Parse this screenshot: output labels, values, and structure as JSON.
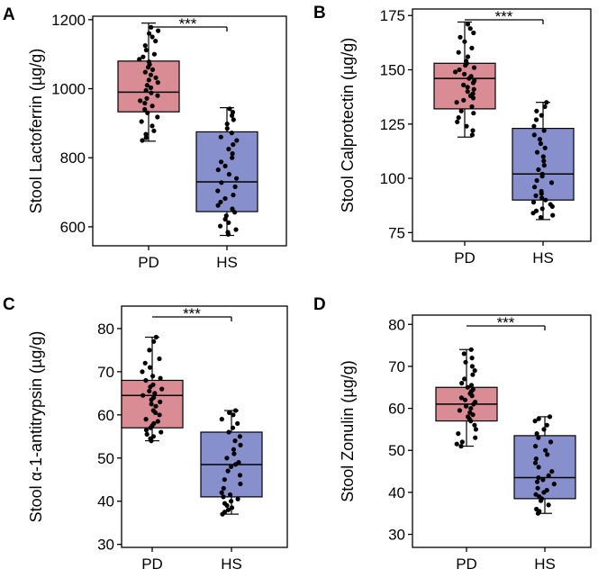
{
  "colors": {
    "pd_fill": "#d98c94",
    "hs_fill": "#8790cc",
    "frame": "#000000",
    "point": "#000000"
  },
  "chart_data": [
    {
      "panel": "A",
      "type": "box",
      "ylabel": "Stool Lactoferrin (µg/g)",
      "categories": [
        "PD",
        "HS"
      ],
      "ylim": [
        545,
        1210
      ],
      "yticks": [
        600,
        800,
        1000,
        1200
      ],
      "significance": "***",
      "boxes": [
        {
          "name": "PD",
          "min": 848,
          "q1": 933,
          "median": 990,
          "q3": 1080,
          "max": 1190
        },
        {
          "name": "HS",
          "min": 575,
          "q1": 644,
          "median": 730,
          "q3": 875,
          "max": 945
        }
      ],
      "points": [
        [
          1178,
          1168,
          1160,
          1150,
          1138,
          1125,
          1112,
          1100,
          1092,
          1085,
          1078,
          1070,
          1062,
          1055,
          1048,
          1040,
          1032,
          1025,
          1018,
          1010,
          1003,
          995,
          988,
          980,
          972,
          965,
          958,
          950,
          940,
          930,
          918,
          905,
          892,
          878,
          868,
          858,
          850
        ],
        [
          942,
          932,
          922,
          910,
          898,
          885,
          872,
          860,
          850,
          838,
          825,
          812,
          800,
          788,
          776,
          765,
          752,
          740,
          728,
          716,
          704,
          692,
          682,
          672,
          662,
          652,
          642,
          632,
          622,
          612,
          602,
          592,
          584,
          578
        ]
      ]
    },
    {
      "panel": "B",
      "type": "box",
      "ylabel": "Stool Calprotectin (µg/g)",
      "categories": [
        "PD",
        "HS"
      ],
      "ylim": [
        71,
        178
      ],
      "yticks": [
        75,
        100,
        125,
        150,
        175
      ],
      "significance": "***",
      "boxes": [
        {
          "name": "PD",
          "min": 119,
          "q1": 132,
          "median": 146,
          "q3": 153,
          "max": 172
        },
        {
          "name": "HS",
          "min": 81,
          "q1": 90,
          "median": 102,
          "q3": 123,
          "max": 135
        }
      ],
      "points": [
        [
          171,
          169,
          167,
          165,
          163,
          160,
          158,
          156,
          154,
          153,
          152,
          151,
          150,
          149,
          148,
          147,
          146,
          145,
          144,
          143,
          142,
          141,
          140,
          139,
          138,
          137,
          136,
          135,
          133,
          131,
          130,
          128,
          126,
          124,
          122,
          120
        ],
        [
          135,
          133,
          131,
          129,
          127,
          124,
          122,
          120,
          118,
          116,
          114,
          112,
          110,
          108,
          106,
          104,
          102,
          101,
          99,
          98,
          96,
          94,
          93,
          92,
          91,
          90,
          89,
          88,
          87,
          86,
          85,
          84,
          83,
          82
        ]
      ]
    },
    {
      "panel": "C",
      "type": "box",
      "ylabel": "Stool α-1-antitrypsin (µg/g)",
      "categories": [
        "PD",
        "HS"
      ],
      "ylim": [
        29.3,
        85.2
      ],
      "yticks": [
        30,
        40,
        50,
        60,
        70,
        80
      ],
      "significance": "***",
      "boxes": [
        {
          "name": "PD",
          "min": 54,
          "q1": 57,
          "median": 64.5,
          "q3": 68,
          "max": 78
        },
        {
          "name": "HS",
          "min": 37,
          "q1": 41,
          "median": 48.5,
          "q3": 56,
          "max": 61
        }
      ],
      "points": [
        [
          78,
          77,
          75,
          73,
          72,
          71,
          70,
          69,
          68.5,
          68,
          67,
          66.5,
          66,
          65.5,
          65,
          64.5,
          64,
          63.5,
          63,
          62.5,
          62,
          61,
          60.5,
          60,
          59,
          58.5,
          58,
          57.5,
          57,
          56.5,
          56,
          55.5,
          55,
          54.5,
          54
        ],
        [
          61,
          60.5,
          60,
          59,
          58,
          57,
          56,
          55,
          54,
          53,
          52,
          51,
          50,
          49,
          48.5,
          48,
          47,
          46,
          45,
          44,
          43,
          42,
          41.5,
          41,
          40.5,
          40,
          39.5,
          39,
          38.5,
          38,
          37.5,
          37
        ]
      ]
    },
    {
      "panel": "D",
      "type": "box",
      "ylabel": "Stool Zonulin (µg/g)",
      "categories": [
        "PD",
        "HS"
      ],
      "ylim": [
        26.9,
        82.2
      ],
      "yticks": [
        30,
        40,
        50,
        60,
        70,
        80
      ],
      "significance": "***",
      "boxes": [
        {
          "name": "PD",
          "min": 51,
          "q1": 57,
          "median": 61,
          "q3": 65,
          "max": 74
        },
        {
          "name": "HS",
          "min": 35,
          "q1": 38.5,
          "median": 43.5,
          "q3": 53.5,
          "max": 58
        }
      ],
      "points": [
        [
          74,
          73,
          72,
          71,
          70,
          69,
          68,
          67,
          66,
          65.5,
          65,
          64.5,
          64,
          63.5,
          63,
          62.5,
          62,
          61.5,
          61,
          60.5,
          60,
          59.5,
          59,
          58.5,
          58,
          57.5,
          57,
          56,
          55,
          54,
          53,
          52,
          51.5,
          51
        ],
        [
          58,
          57.5,
          57,
          56,
          55,
          54,
          53,
          52,
          51,
          50,
          49,
          48,
          47,
          46,
          45,
          44,
          43.5,
          43,
          42.5,
          42,
          41,
          40.5,
          40,
          39.5,
          39,
          38.5,
          38,
          37,
          36,
          35.5,
          35
        ]
      ]
    }
  ]
}
